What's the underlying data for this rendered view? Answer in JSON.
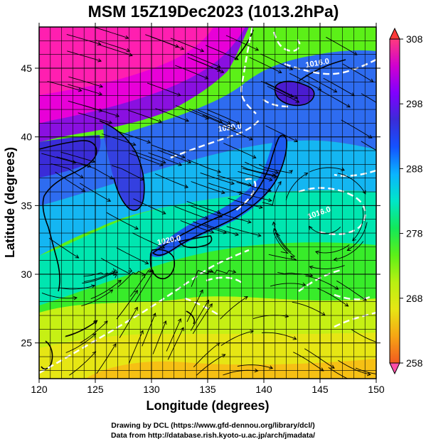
{
  "title": "MSM 15Z19Dec2023 (1013.2hPa)",
  "xlabel": "Longitude (degrees)",
  "ylabel": "Latitude  (degrees)",
  "map": {
    "lon_range": [
      120,
      150
    ],
    "lat_range": [
      22.4,
      48
    ],
    "lon_ticks": [
      120,
      125,
      130,
      135,
      140,
      145,
      150
    ],
    "lat_ticks": [
      25,
      30,
      35,
      40,
      45
    ],
    "grid": true,
    "field": "temperature (K)",
    "vectors": "wind streamlines",
    "isobar_labels": [
      {
        "text": "1016.0",
        "lon": 144.8,
        "lat": 45.2,
        "rotate": -10
      },
      {
        "text": "1020.0",
        "lon": 137.0,
        "lat": 40.5,
        "rotate": -8
      },
      {
        "text": "1020.0",
        "lon": 131.6,
        "lat": 32.3,
        "rotate": -12
      },
      {
        "text": "1016.0",
        "lon": 145.0,
        "lat": 34.3,
        "rotate": -20
      }
    ]
  },
  "colorbar": {
    "ticks": [
      "308",
      "298",
      "288",
      "278",
      "268",
      "258"
    ],
    "min": 258,
    "max": 308,
    "colors": [
      "#ff3a7f",
      "#d000d0",
      "#8000ff",
      "#3a2cd8",
      "#1452ff",
      "#0ab4ff",
      "#00e6c8",
      "#12e85a",
      "#5cf018",
      "#b8f012",
      "#e6e614",
      "#f6a614",
      "#f25a20"
    ]
  },
  "credits": {
    "line1": "Drawing by DCL (https://www.gfd-dennou.org/library/dcl/)",
    "line2": "Data from http://database.rish.kyoto-u.ac.jp/arch/jmadata/"
  }
}
